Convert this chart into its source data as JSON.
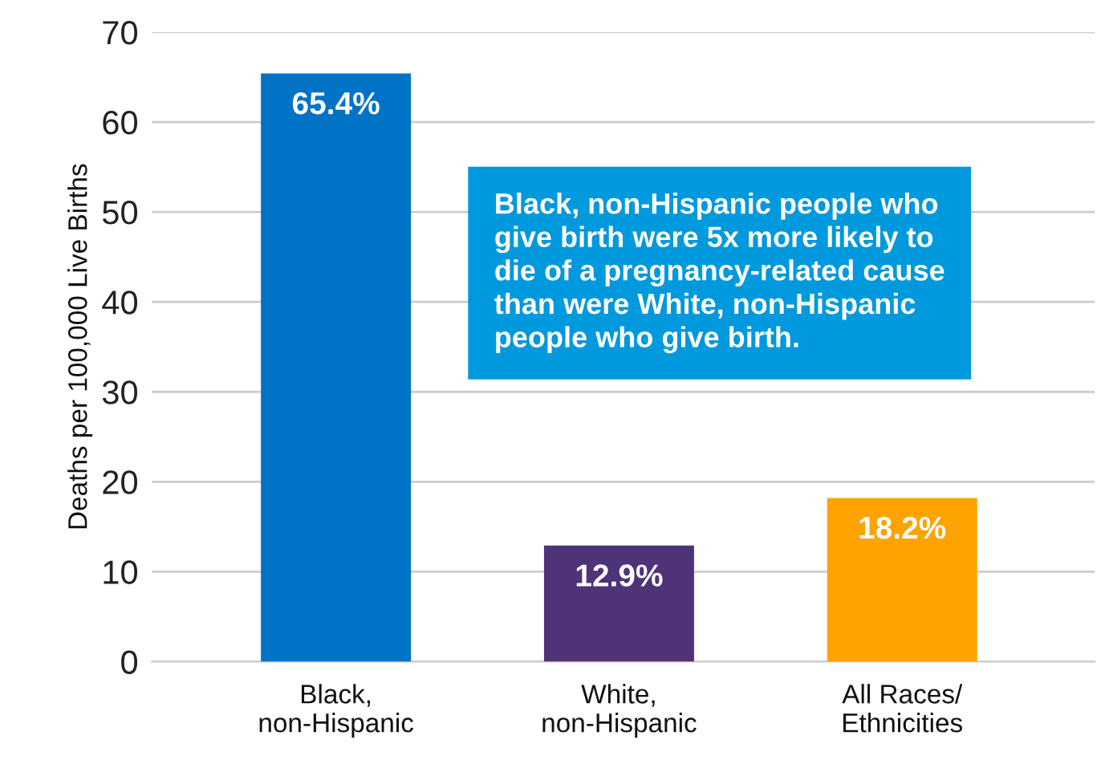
{
  "chart_data": {
    "type": "bar",
    "ylabel": "Deaths per 100,000 Live Births",
    "categories": [
      "Black,\nnon-Hispanic",
      "White,\nnon-Hispanic",
      "All Races/\nEthnicities"
    ],
    "values": [
      65.4,
      12.9,
      18.2
    ],
    "colors": [
      "#0073c7",
      "#4f3378",
      "#ffa300"
    ],
    "value_labels": [
      "65.4%",
      "12.9%",
      "18.2%"
    ],
    "ylim": [
      0,
      70
    ],
    "yticks": [
      0,
      10,
      20,
      30,
      40,
      50,
      60,
      70
    ],
    "grid": "y",
    "annotations": [
      "Black, non-Hispanic people who\ngive birth were 5x more likely to\ndie of a pregnancy-related cause\nthan were White, non-Hispanic\npeople who give birth."
    ]
  }
}
